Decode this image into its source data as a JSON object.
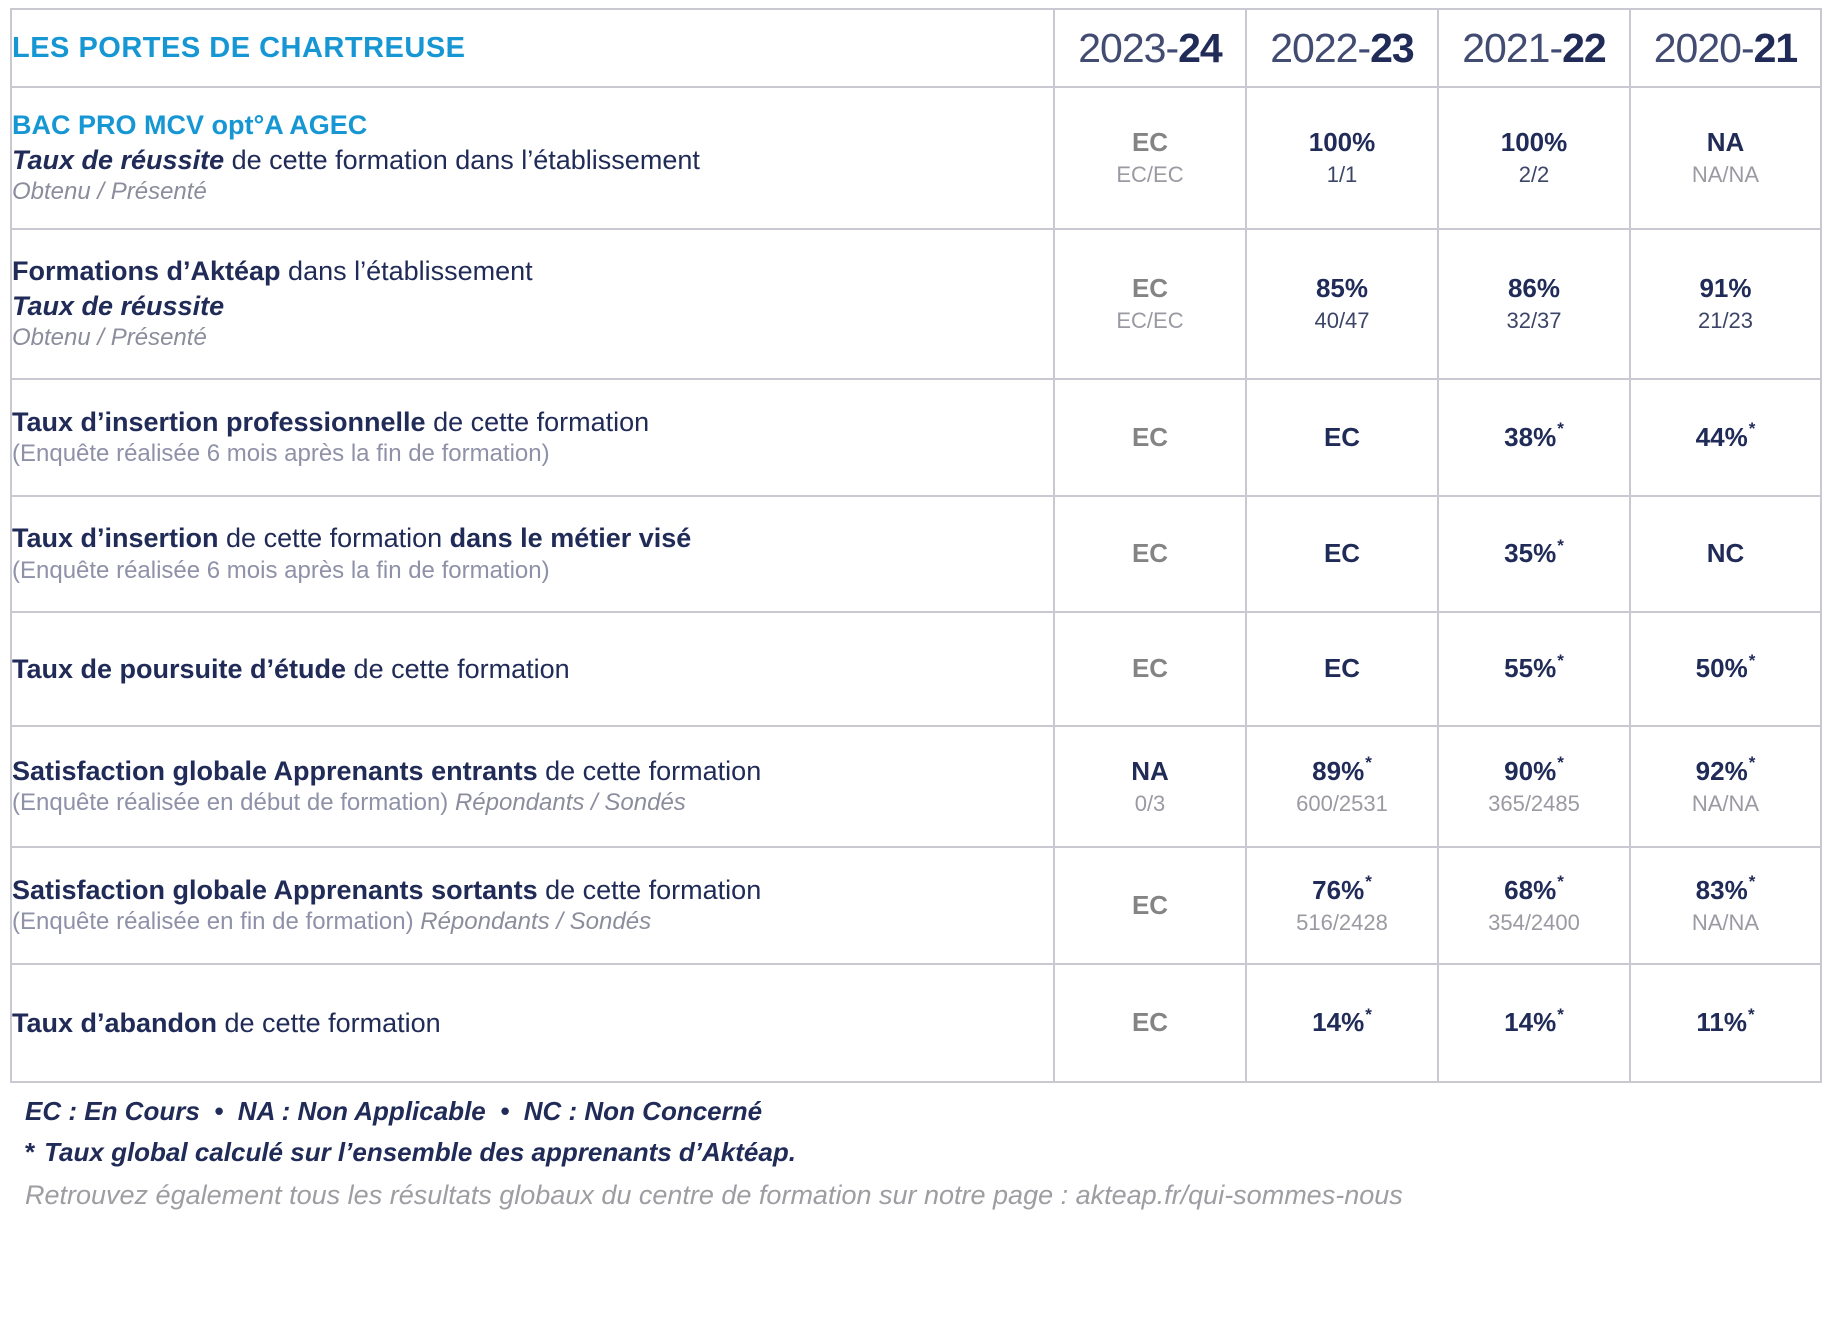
{
  "title": "LES PORTES DE CHARTREUSE",
  "years": [
    {
      "light": "2023-",
      "bold": "24"
    },
    {
      "light": "2022-",
      "bold": "23"
    },
    {
      "light": "2021-",
      "bold": "22"
    },
    {
      "light": "2020-",
      "bold": "21"
    }
  ],
  "colors": {
    "accent_blue": "#1697D4",
    "navy": "#202B57",
    "gray_value": "#848484",
    "cell_shade": "#EFEFF4",
    "cell_shade_dark": "#E2E2EC",
    "border": "#C9CAD1"
  },
  "rows": [
    {
      "label_lines": [
        [
          {
            "t": "BAC PRO MCV opt°A AGEC",
            "s": "blue"
          }
        ],
        [
          {
            "t": "Taux de réussite",
            "s": "bi"
          },
          {
            "t": " de cette formation dans l’établissement",
            "s": "r"
          }
        ],
        [
          {
            "t": "Obtenu / Présenté",
            "s": "gi"
          }
        ]
      ],
      "cells": [
        {
          "main": "EC",
          "mc": "gray",
          "sub": "EC/EC",
          "sc": "gray"
        },
        {
          "main": "100%",
          "sub": "1/1",
          "sc": "navy"
        },
        {
          "main": "100%",
          "sub": "2/2",
          "sc": "navy"
        },
        {
          "main": "NA",
          "sub": "NA/NA",
          "sc": "gray"
        }
      ]
    },
    {
      "label_lines": [
        [
          {
            "t": "Formations d’Aktéap",
            "s": "b"
          },
          {
            "t": " dans l’établissement",
            "s": "r"
          }
        ],
        [
          {
            "t": "Taux de réussite",
            "s": "bi"
          }
        ],
        [
          {
            "t": "Obtenu / Présenté",
            "s": "gi"
          }
        ]
      ],
      "cells": [
        {
          "main": "EC",
          "mc": "gray",
          "sub": "EC/EC",
          "sc": "gray"
        },
        {
          "main": "85%",
          "sub": "40/47",
          "sc": "navy"
        },
        {
          "main": "86%",
          "sub": "32/37",
          "sc": "navy"
        },
        {
          "main": "91%",
          "sub": "21/23",
          "sc": "navy"
        }
      ]
    },
    {
      "label_lines": [
        [
          {
            "t": "Taux d’insertion professionnelle",
            "s": "b"
          },
          {
            "t": " de cette formation",
            "s": "r"
          }
        ],
        [
          {
            "t": "(Enquête réalisée 6 mois après la fin de formation)",
            "s": "g"
          }
        ]
      ],
      "cells": [
        {
          "main": "EC",
          "mc": "gray"
        },
        {
          "main": "EC"
        },
        {
          "main": "38%",
          "star": true,
          "bg": "shade"
        },
        {
          "main": "44%",
          "star": true,
          "bg": "shade"
        }
      ]
    },
    {
      "label_lines": [
        [
          {
            "t": "Taux d’insertion",
            "s": "b"
          },
          {
            "t": " de cette formation ",
            "s": "r"
          },
          {
            "t": "dans le métier visé",
            "s": "b"
          }
        ],
        [
          {
            "t": "(Enquête réalisée 6 mois après la fin de formation)",
            "s": "g"
          }
        ]
      ],
      "cells": [
        {
          "main": "EC",
          "mc": "gray"
        },
        {
          "main": "EC"
        },
        {
          "main": "35%",
          "star": true,
          "bg": "shade"
        },
        {
          "main": "NC",
          "bg": "shadedark"
        }
      ]
    },
    {
      "label_lines": [
        [
          {
            "t": "Taux de poursuite d’étude",
            "s": "b"
          },
          {
            "t": " de cette formation",
            "s": "r"
          }
        ]
      ],
      "cells": [
        {
          "main": "EC",
          "mc": "gray"
        },
        {
          "main": "EC"
        },
        {
          "main": "55%",
          "star": true,
          "bg": "shade"
        },
        {
          "main": "50%",
          "star": true,
          "bg": "shade"
        }
      ]
    },
    {
      "label_lines": [
        [
          {
            "t": "Satisfaction globale Apprenants entrants",
            "s": "b"
          },
          {
            "t": " de cette formation",
            "s": "r"
          }
        ],
        [
          {
            "t": "(Enquête réalisée en début de formation) ",
            "s": "g"
          },
          {
            "t": "Répondants / Sondés",
            "s": "gi"
          }
        ]
      ],
      "cells": [
        {
          "main": "NA",
          "sub": "0/3",
          "sc": "gray"
        },
        {
          "main": "89%",
          "star": true,
          "sub": "600/2531",
          "sc": "gray",
          "bg": "shade"
        },
        {
          "main": "90%",
          "star": true,
          "sub": "365/2485",
          "sc": "gray",
          "bg": "shade"
        },
        {
          "main": "92%",
          "star": true,
          "sub": "NA/NA",
          "sc": "gray",
          "bg": "shade"
        }
      ]
    },
    {
      "label_lines": [
        [
          {
            "t": "Satisfaction globale Apprenants sortants",
            "s": "b"
          },
          {
            "t": " de cette formation",
            "s": "r"
          }
        ],
        [
          {
            "t": "(Enquête réalisée en fin de formation) ",
            "s": "g"
          },
          {
            "t": "Répondants / Sondés",
            "s": "gi"
          }
        ]
      ],
      "cells": [
        {
          "main": "EC",
          "mc": "gray"
        },
        {
          "main": "76%",
          "star": true,
          "sub": "516/2428",
          "sc": "gray",
          "bg": "shade"
        },
        {
          "main": "68%",
          "star": true,
          "sub": "354/2400",
          "sc": "gray",
          "bg": "shade"
        },
        {
          "main": "83%",
          "star": true,
          "sub": "NA/NA",
          "sc": "gray",
          "bg": "shade"
        }
      ]
    },
    {
      "label_lines": [
        [
          {
            "t": "Taux d’abandon",
            "s": "b"
          },
          {
            "t": " de cette formation",
            "s": "r"
          }
        ]
      ],
      "cells": [
        {
          "main": "EC",
          "mc": "gray"
        },
        {
          "main": "14%",
          "star": true,
          "bg": "shade"
        },
        {
          "main": "14%",
          "star": true,
          "bg": "shade"
        },
        {
          "main": "11%",
          "star": true,
          "bg": "shade"
        }
      ]
    }
  ],
  "footer": {
    "legend": "EC : En Cours  •  NA : Non Applicable  •  NC : Non Concerné",
    "star_symbol": "*",
    "star_note": "Taux global calculé sur l’ensemble des apprenants d’Aktéap.",
    "link_note": "Retrouvez également tous les résultats globaux du centre de formation sur notre page : akteap.fr/qui-sommes-nous"
  }
}
